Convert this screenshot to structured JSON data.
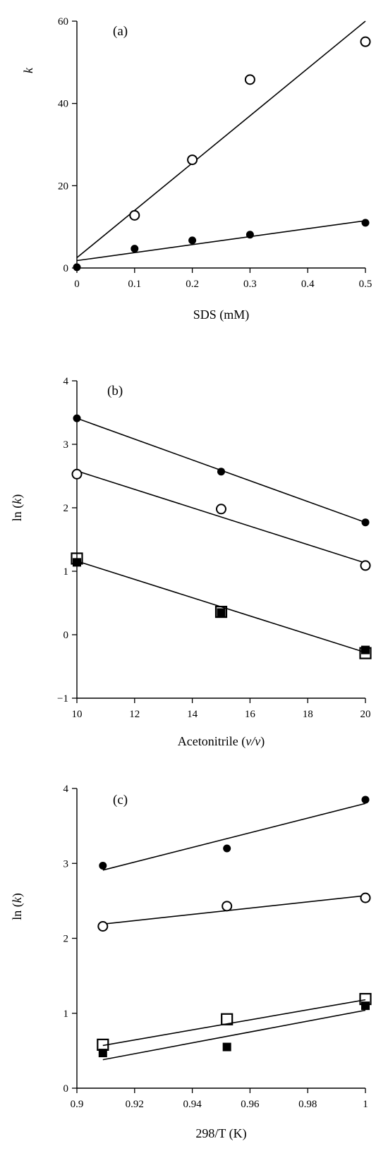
{
  "chart_data": [
    {
      "type": "scatter",
      "panel_label": "(a)",
      "xlabel": "SDS (mM)",
      "ylabel": "k",
      "xlim": [
        0,
        0.5
      ],
      "ylim": [
        0,
        60
      ],
      "xticks": [
        "0",
        "0.1",
        "0.2",
        "0.3",
        "0.4",
        "0.5"
      ],
      "yticks": [
        "0",
        "20",
        "40",
        "60"
      ],
      "series": [
        {
          "marker": "open-circle",
          "x": [
            0.1,
            0.2,
            0.3,
            0.5
          ],
          "y": [
            12.8,
            26.3,
            45.8,
            55.0
          ],
          "fit": [
            [
              0,
              2.5
            ],
            [
              0.5,
              60.0
            ]
          ]
        },
        {
          "marker": "filled-circle",
          "x": [
            0,
            0.1,
            0.2,
            0.3,
            0.5
          ],
          "y": [
            0.2,
            4.7,
            6.7,
            8.1,
            11.0
          ],
          "fit": [
            [
              0,
              1.8
            ],
            [
              0.5,
              11.5
            ]
          ]
        }
      ]
    },
    {
      "type": "scatter",
      "panel_label": "(b)",
      "xlabel": "Acetonitrile",
      "xlabel_unit": "(v/v)",
      "ylabel": "ln (k)",
      "xlim": [
        10,
        20
      ],
      "ylim": [
        -1,
        4
      ],
      "xticks": [
        "10",
        "12",
        "14",
        "16",
        "18",
        "20"
      ],
      "yticks": [
        "−1",
        "0",
        "1",
        "2",
        "3",
        "4"
      ],
      "series": [
        {
          "marker": "filled-circle",
          "x": [
            10,
            15,
            20
          ],
          "y": [
            3.41,
            2.57,
            1.77
          ],
          "fit": [
            [
              10,
              3.41
            ],
            [
              20,
              1.77
            ]
          ]
        },
        {
          "marker": "open-circle",
          "x": [
            10,
            15,
            20
          ],
          "y": [
            2.53,
            1.98,
            1.09
          ],
          "fit": [
            [
              10,
              2.58
            ],
            [
              20,
              1.13
            ]
          ]
        },
        {
          "marker": "filled-square",
          "x": [
            10,
            15,
            20
          ],
          "y": [
            1.14,
            0.35,
            -0.24
          ],
          "fit": [
            [
              10,
              1.16
            ],
            [
              20,
              -0.28
            ]
          ]
        },
        {
          "marker": "open-square",
          "x": [
            10,
            15,
            20
          ],
          "y": [
            1.2,
            0.36,
            -0.29
          ]
        }
      ]
    },
    {
      "type": "scatter",
      "panel_label": "(c)",
      "xlabel": "298/T (K)",
      "ylabel": "ln (k)",
      "xlim": [
        0.9,
        1.0
      ],
      "ylim": [
        0,
        4
      ],
      "xticks": [
        "0.9",
        "0.92",
        "0.94",
        "0.96",
        "0.98",
        "1"
      ],
      "yticks": [
        "0",
        "1",
        "2",
        "3",
        "4"
      ],
      "series": [
        {
          "marker": "filled-circle",
          "x": [
            0.909,
            0.952,
            1.0
          ],
          "y": [
            2.97,
            3.2,
            3.85
          ],
          "fit": [
            [
              0.909,
              2.91
            ],
            [
              1.0,
              3.8
            ]
          ]
        },
        {
          "marker": "open-circle",
          "x": [
            0.909,
            0.952,
            1.0
          ],
          "y": [
            2.16,
            2.43,
            2.54
          ],
          "fit": [
            [
              0.909,
              2.19
            ],
            [
              1.0,
              2.57
            ]
          ]
        },
        {
          "marker": "open-square",
          "x": [
            0.909,
            0.952,
            1.0
          ],
          "y": [
            0.58,
            0.92,
            1.19
          ],
          "fit": [
            [
              0.909,
              0.57
            ],
            [
              1.0,
              1.18
            ]
          ]
        },
        {
          "marker": "filled-square",
          "x": [
            0.909,
            0.952,
            1.0
          ],
          "y": [
            0.47,
            0.55,
            1.1
          ],
          "fit": [
            [
              0.909,
              0.38
            ],
            [
              1.0,
              1.04
            ]
          ]
        }
      ]
    }
  ]
}
